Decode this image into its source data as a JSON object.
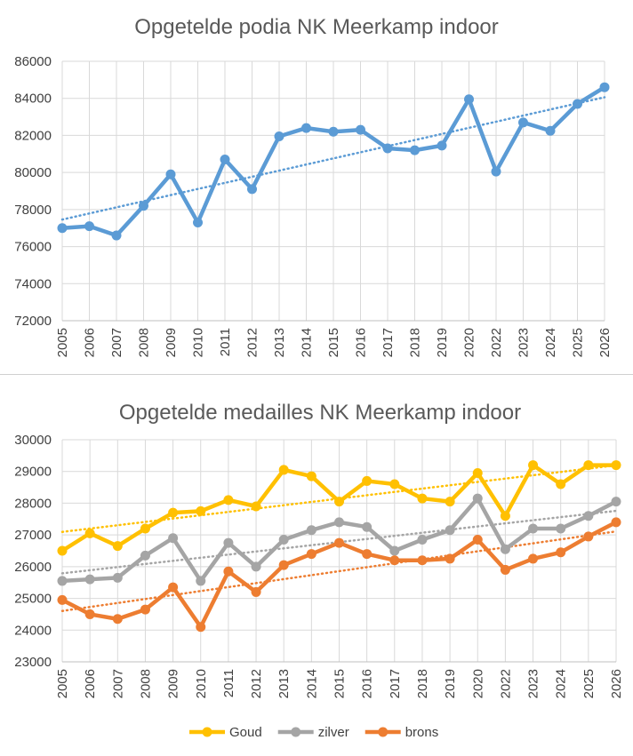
{
  "chart_data": [
    {
      "type": "line",
      "title": "Opgetelde podia NK Meerkamp indoor",
      "xlabel": "",
      "ylabel": "",
      "categories": [
        "2005",
        "2006",
        "2007",
        "2008",
        "2009",
        "2010",
        "2011",
        "2012",
        "2013",
        "2014",
        "2015",
        "2016",
        "2017",
        "2018",
        "2019",
        "2020",
        "2022",
        "2023",
        "2024",
        "2025",
        "2026"
      ],
      "ylim": [
        72000,
        86000
      ],
      "yticks": [
        72000,
        74000,
        76000,
        78000,
        80000,
        82000,
        84000,
        86000
      ],
      "grid": true,
      "series": [
        {
          "name": "Opgetelde podia",
          "color": "#5b9bd5",
          "values": [
            77000,
            77100,
            76600,
            78200,
            79900,
            77300,
            80700,
            79100,
            81950,
            82400,
            82200,
            82300,
            81300,
            81200,
            81450,
            83950,
            80050,
            82700,
            82250,
            83700,
            84600
          ],
          "trendline": true
        }
      ]
    },
    {
      "type": "line",
      "title": "Opgetelde medailles NK Meerkamp indoor",
      "xlabel": "",
      "ylabel": "",
      "categories": [
        "2005",
        "2006",
        "2007",
        "2008",
        "2009",
        "2010",
        "2011",
        "2012",
        "2013",
        "2014",
        "2015",
        "2016",
        "2017",
        "2018",
        "2019",
        "2020",
        "2022",
        "2023",
        "2024",
        "2025",
        "2026"
      ],
      "ylim": [
        23000,
        30000
      ],
      "yticks": [
        23000,
        24000,
        25000,
        26000,
        27000,
        28000,
        29000,
        30000
      ],
      "grid": true,
      "legend": "bottom",
      "series": [
        {
          "name": "Goud",
          "color": "#ffc000",
          "values": [
            26500,
            27050,
            26650,
            27200,
            27700,
            27750,
            28100,
            27900,
            29050,
            28850,
            28050,
            28700,
            28600,
            28150,
            28050,
            28950,
            27600,
            29200,
            28600,
            29200,
            29200
          ],
          "trendline": true
        },
        {
          "name": "zilver",
          "color": "#a5a5a5",
          "values": [
            25550,
            25600,
            25650,
            26350,
            26900,
            25550,
            26750,
            26000,
            26850,
            27150,
            27400,
            27250,
            26500,
            26850,
            27150,
            28150,
            26550,
            27200,
            27200,
            27600,
            28050
          ],
          "trendline": true
        },
        {
          "name": "brons",
          "color": "#ed7d31",
          "values": [
            24950,
            24500,
            24350,
            24650,
            25350,
            24100,
            25850,
            25200,
            26050,
            26400,
            26750,
            26400,
            26200,
            26200,
            26250,
            26850,
            25900,
            26250,
            26450,
            26950,
            27400
          ],
          "trendline": true
        }
      ]
    }
  ]
}
